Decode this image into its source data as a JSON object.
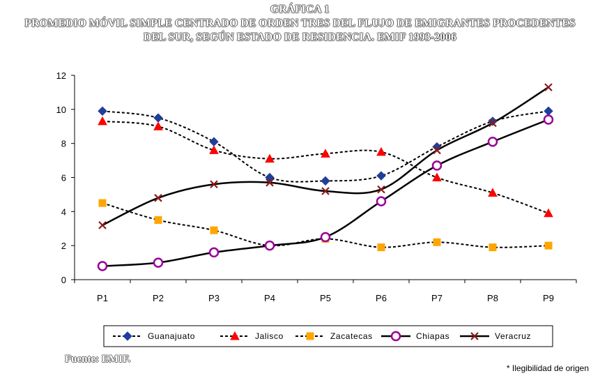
{
  "header": {
    "title_line1": "GRÁFICA 1",
    "title_line2": "PROMEDIO MÓVIL SIMPLE CENTRADO DE ORDEN TRES DEL FLUJO DE EMIGRANTES PROCEDENTES",
    "title_line3": "DEL SUR, SEGÚN ESTADO DE RESIDENCIA. EMIF 1993-2006"
  },
  "footer": {
    "source": "Fuente: EMIF.",
    "note": "* Ilegibilidad de origen"
  },
  "chart_data": {
    "type": "line",
    "title": "PROMEDIO MÓVIL SIMPLE CENTRADO DE ORDEN TRES DEL FLUJO DE EMIGRANTES PROCEDENTES DEL SUR, SEGÚN ESTADO DE RESIDENCIA. EMIF 1993-2006",
    "xlabel": "",
    "ylabel": "",
    "categories": [
      "P1",
      "P2",
      "P3",
      "P4",
      "P5",
      "P6",
      "P7",
      "P8",
      "P9"
    ],
    "ylim": [
      0,
      12
    ],
    "yticks": [
      0,
      2,
      4,
      6,
      8,
      10,
      12
    ],
    "grid": false,
    "legend_position": "bottom",
    "series": [
      {
        "name": "Guanajuato",
        "values": [
          9.9,
          9.5,
          8.1,
          6.0,
          5.8,
          6.1,
          7.8,
          9.3,
          9.9
        ],
        "marker": "diamond",
        "marker_color": "#1f3f99",
        "line_style": "dashed"
      },
      {
        "name": "Jalisco",
        "values": [
          9.3,
          9.0,
          7.6,
          7.1,
          7.4,
          7.5,
          6.0,
          5.1,
          3.9
        ],
        "marker": "triangle",
        "marker_color": "#ff0000",
        "line_style": "dashed"
      },
      {
        "name": "Zacatecas",
        "values": [
          4.5,
          3.5,
          2.9,
          2.0,
          2.4,
          1.9,
          2.2,
          1.9,
          2.0
        ],
        "marker": "square",
        "marker_color": "#ffa500",
        "line_style": "dashed"
      },
      {
        "name": "Chiapas",
        "values": [
          0.8,
          1.0,
          1.6,
          2.0,
          2.5,
          4.6,
          6.7,
          8.1,
          9.4
        ],
        "marker": "circle",
        "marker_color": "#990099",
        "line_style": "solid"
      },
      {
        "name": "Veracruz",
        "values": [
          3.2,
          4.8,
          5.6,
          5.7,
          5.2,
          5.3,
          7.6,
          9.2,
          11.3
        ],
        "marker": "cross",
        "marker_color": "#8b1a1a",
        "line_style": "solid"
      }
    ]
  }
}
